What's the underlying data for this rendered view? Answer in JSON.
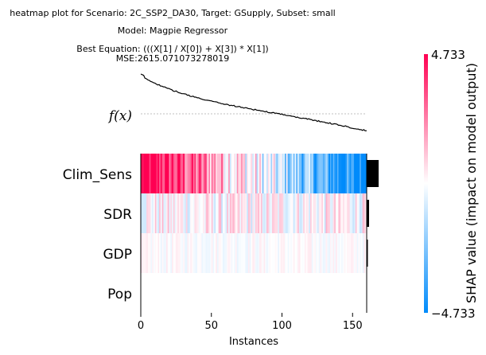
{
  "chart_data": {
    "type": "heatmap",
    "title_lines": [
      "heatmap plot for Scenario: 2C_SSP2_DA30, Target: GSupply, Subset: small",
      "Model: Magpie Regressor",
      "Best Equation: (((X[1] / X[0]) + X[3]) * X[1])",
      "MSE:2615.071073278019"
    ],
    "fx_label": "f(x)",
    "xlabel": "Instances",
    "x_ticks": [
      0,
      50,
      100,
      150
    ],
    "n_instances": 160,
    "features": [
      {
        "name": "Clim_Sens",
        "importance": 1.0
      },
      {
        "name": "SDR",
        "importance": 0.2
      },
      {
        "name": "GDP",
        "importance": 0.1
      },
      {
        "name": "Pop",
        "importance": 0.0
      }
    ],
    "colorbar": {
      "max_label": "4.733",
      "min_label": "−4.733",
      "vmax": 4.733,
      "vmin": -4.733,
      "label": "SHAP value (impact on model output)",
      "colors": {
        "low": "#008bfb",
        "mid": "#ffffff",
        "high": "#ff0052"
      }
    }
  }
}
